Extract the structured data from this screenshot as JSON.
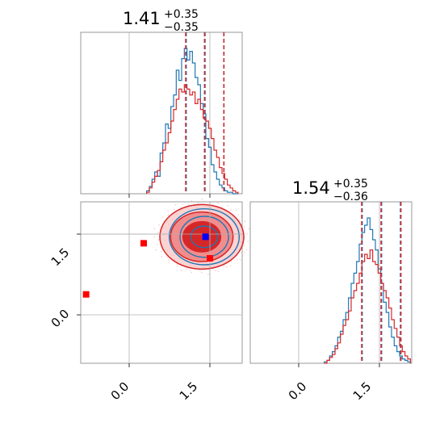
{
  "chart_data": [
    {
      "panel": "top-left",
      "type": "step-histogram",
      "title": {
        "value": "1.41",
        "sup": "+0.35",
        "sub": "−0.35"
      },
      "xlim": [
        -0.9,
        2.1
      ],
      "x_ticks": [
        0.0,
        1.5
      ],
      "grid": true,
      "series": [
        {
          "color": "#1f77b4",
          "quantiles": [
            1.06,
            1.41,
            1.76
          ]
        },
        {
          "color": "#d62728",
          "quantiles": [
            1.05,
            1.4,
            1.76
          ]
        }
      ],
      "x": [
        0.35,
        0.4,
        0.45,
        0.5,
        0.55,
        0.6,
        0.65,
        0.7,
        0.75,
        0.8,
        0.85,
        0.9,
        0.95,
        1.0,
        1.05,
        1.1,
        1.15,
        1.2,
        1.25,
        1.3,
        1.35,
        1.4,
        1.45,
        1.5,
        1.55,
        1.6,
        1.65,
        1.7,
        1.75,
        1.8,
        1.85,
        1.9,
        1.95,
        2.0
      ],
      "blue_counts": [
        0.02,
        0.05,
        0.1,
        0.15,
        0.12,
        0.28,
        0.35,
        0.48,
        0.45,
        0.6,
        0.68,
        0.85,
        0.78,
        0.93,
        1.0,
        0.92,
        0.98,
        0.9,
        0.8,
        0.75,
        0.62,
        0.55,
        0.38,
        0.32,
        0.2,
        0.15,
        0.1,
        0.06,
        0.04,
        0.02,
        0.01,
        0.01,
        0.0,
        0.0
      ],
      "red_counts": [
        0.01,
        0.04,
        0.08,
        0.12,
        0.16,
        0.22,
        0.3,
        0.35,
        0.42,
        0.5,
        0.58,
        0.65,
        0.72,
        0.7,
        0.75,
        0.72,
        0.68,
        0.7,
        0.62,
        0.65,
        0.58,
        0.52,
        0.5,
        0.45,
        0.38,
        0.3,
        0.25,
        0.18,
        0.14,
        0.1,
        0.06,
        0.04,
        0.02,
        0.01
      ]
    },
    {
      "panel": "bottom-left",
      "type": "contour-2d",
      "xlim": [
        -0.9,
        2.1
      ],
      "ylim": [
        -0.9,
        2.1
      ],
      "x_ticks": [
        0.0,
        1.5
      ],
      "y_ticks": [
        0.0,
        1.5
      ],
      "grid": true,
      "guide_lines": {
        "x": 1.5,
        "y": 1.5
      },
      "contour_center": [
        1.35,
        1.45
      ],
      "contour_levels": [
        {
          "rx": 0.35,
          "ry": 0.28,
          "fill": "#d62728",
          "opacity": 1.0
        },
        {
          "rx": 0.58,
          "ry": 0.46,
          "fill": "#f08080",
          "opacity": 0.85
        },
        {
          "rx": 0.78,
          "ry": 0.6,
          "fill": "#f8c0c0",
          "opacity": 0.7
        }
      ],
      "blue_contours": [
        {
          "rx": 0.25,
          "ry": 0.2
        },
        {
          "rx": 0.45,
          "ry": 0.38
        },
        {
          "rx": 0.65,
          "ry": 0.52
        }
      ],
      "markers": [
        {
          "x": -0.8,
          "y": 0.38,
          "color": "#ff0000"
        },
        {
          "x": 0.27,
          "y": 1.33,
          "color": "#ff0000"
        },
        {
          "x": 1.5,
          "y": 1.05,
          "color": "#ff0000"
        },
        {
          "x": 1.42,
          "y": 1.45,
          "color": "#0000ff"
        }
      ]
    },
    {
      "panel": "bottom-right",
      "type": "step-histogram",
      "title": {
        "value": "1.54",
        "sup": "+0.35",
        "sub": "−0.36"
      },
      "xlim": [
        -0.9,
        2.1
      ],
      "x_ticks": [
        0.0,
        1.5
      ],
      "grid": true,
      "series": [
        {
          "color": "#1f77b4",
          "quantiles": [
            1.18,
            1.54,
            1.89
          ]
        },
        {
          "color": "#d62728",
          "quantiles": [
            1.17,
            1.53,
            1.9
          ]
        }
      ],
      "x": [
        0.5,
        0.55,
        0.6,
        0.65,
        0.7,
        0.75,
        0.8,
        0.85,
        0.9,
        0.95,
        1.0,
        1.05,
        1.1,
        1.15,
        1.2,
        1.25,
        1.3,
        1.35,
        1.4,
        1.45,
        1.5,
        1.55,
        1.6,
        1.65,
        1.7,
        1.75,
        1.8,
        1.85,
        1.9,
        1.95,
        2.0,
        2.05
      ],
      "blue_counts": [
        0.01,
        0.02,
        0.05,
        0.08,
        0.12,
        0.18,
        0.22,
        0.3,
        0.35,
        0.45,
        0.55,
        0.62,
        0.7,
        0.82,
        0.9,
        0.95,
        1.0,
        0.92,
        0.85,
        0.78,
        0.65,
        0.55,
        0.42,
        0.35,
        0.25,
        0.18,
        0.12,
        0.08,
        0.05,
        0.03,
        0.02,
        0.01
      ],
      "red_counts": [
        0.0,
        0.02,
        0.04,
        0.06,
        0.1,
        0.14,
        0.2,
        0.26,
        0.3,
        0.36,
        0.45,
        0.5,
        0.55,
        0.62,
        0.7,
        0.75,
        0.72,
        0.78,
        0.7,
        0.68,
        0.62,
        0.55,
        0.5,
        0.45,
        0.38,
        0.3,
        0.24,
        0.18,
        0.12,
        0.08,
        0.05,
        0.03
      ]
    }
  ],
  "tick_labels": [
    "0.0",
    "1.5"
  ]
}
